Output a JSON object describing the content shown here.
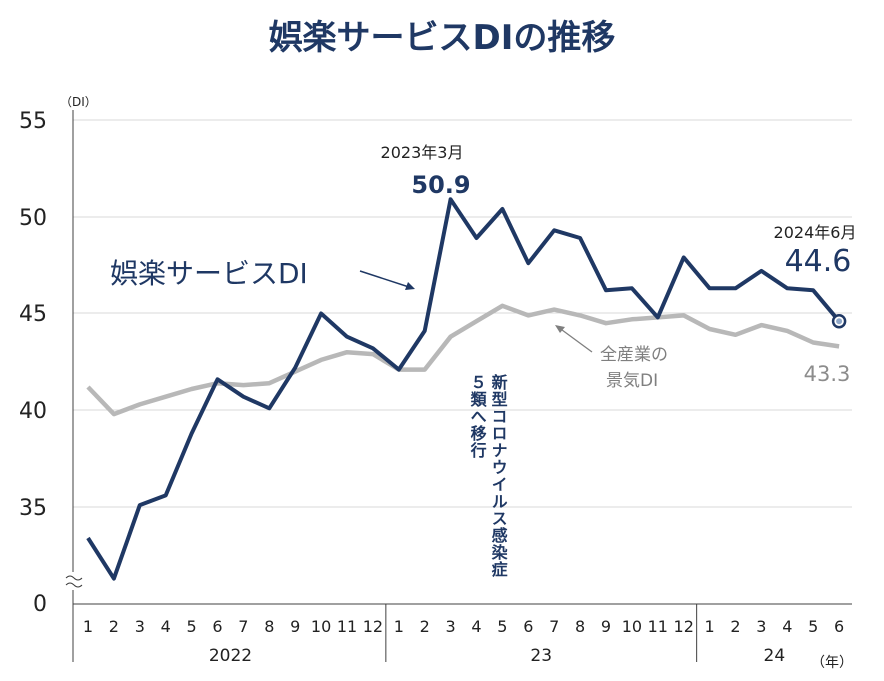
{
  "chart_data": {
    "type": "line",
    "title": "娯楽サービスDIの推移",
    "y_unit": "（DI）",
    "x_unit": "（年）",
    "ylim": [
      30,
      55
    ],
    "y_ticks": [
      "55",
      "50",
      "45",
      "40",
      "35",
      "0"
    ],
    "y_tick_values": [
      55,
      50,
      45,
      40,
      35,
      30
    ],
    "axis_break": true,
    "months": [
      "1",
      "2",
      "3",
      "4",
      "5",
      "6",
      "7",
      "8",
      "9",
      "10",
      "11",
      "12",
      "1",
      "2",
      "3",
      "4",
      "5",
      "6",
      "7",
      "8",
      "9",
      "10",
      "11",
      "12",
      "1",
      "2",
      "3",
      "4",
      "5",
      "6"
    ],
    "years": [
      {
        "label": "2022",
        "months": 12
      },
      {
        "label": "23",
        "months": 12
      },
      {
        "label": "24",
        "months": 6
      }
    ],
    "grid": true,
    "series": [
      {
        "name": "娯楽サービスDI",
        "color": "#1f3864",
        "values": [
          33.4,
          31.3,
          35.1,
          35.6,
          38.8,
          41.6,
          40.7,
          40.1,
          42.2,
          45.0,
          43.8,
          43.2,
          42.1,
          44.1,
          50.9,
          48.9,
          50.4,
          47.6,
          49.3,
          48.9,
          46.2,
          46.3,
          44.8,
          47.9,
          46.3,
          46.3,
          47.2,
          46.3,
          46.2,
          44.6
        ]
      },
      {
        "name": "全産業の景気DI",
        "color": "#b8b8b8",
        "values": [
          41.2,
          39.8,
          40.3,
          40.7,
          41.1,
          41.4,
          41.3,
          41.4,
          42.0,
          42.6,
          43.0,
          42.9,
          42.1,
          42.1,
          43.8,
          44.6,
          45.4,
          44.9,
          45.2,
          44.9,
          44.5,
          44.7,
          44.8,
          44.9,
          44.2,
          43.9,
          44.4,
          44.1,
          43.5,
          43.3
        ]
      }
    ],
    "annotations": {
      "peak_date": "2023年3月",
      "peak_value": "50.9",
      "last_date": "2024年6月",
      "last_value": "44.6",
      "all_last_value": "43.3",
      "series_label": "娯楽サービスDI",
      "all_label_line1": "全産業の",
      "all_label_line2": "景気DI",
      "event_line1": "新型コロナウイルス感染症",
      "event_line2": "５類へ移行"
    }
  }
}
